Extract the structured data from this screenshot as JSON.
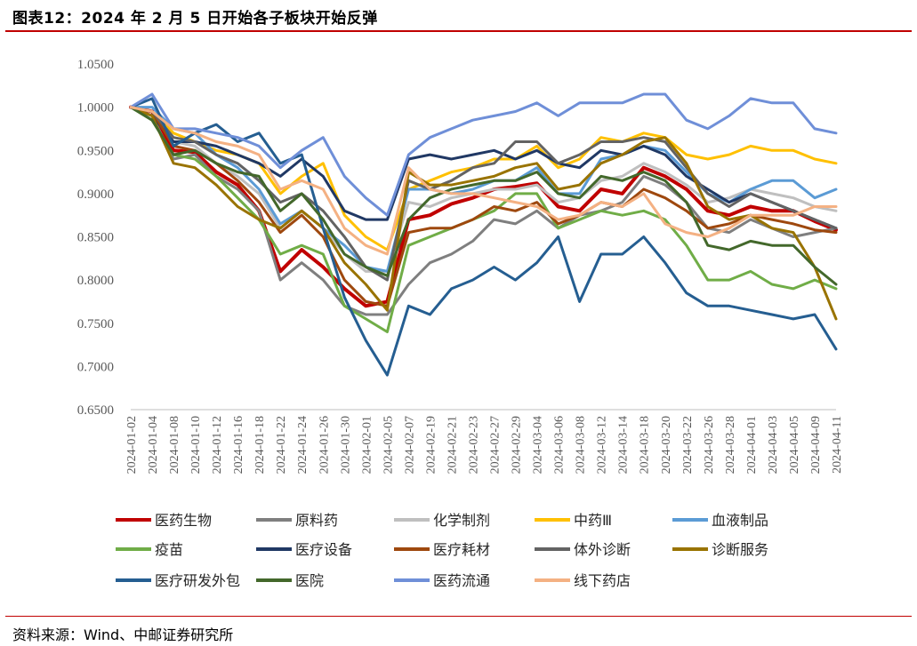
{
  "header": {
    "title": "图表12：2024 年 2 月 5 日开始各子板块开始反弹"
  },
  "footer": {
    "source": "资料来源：Wind、中邮证券研究所"
  },
  "colors": {
    "accent_rule": "#c00000"
  },
  "chart_data": {
    "type": "line",
    "ylim": [
      0.65,
      1.05
    ],
    "yticks": [
      "1.0500",
      "1.0000",
      "0.9500",
      "0.9000",
      "0.8500",
      "0.8000",
      "0.7500",
      "0.7000",
      "0.6500"
    ],
    "ytick_values": [
      1.05,
      1.0,
      0.95,
      0.9,
      0.85,
      0.8,
      0.75,
      0.7,
      0.65
    ],
    "x": [
      "2024-01-02",
      "2024-01-04",
      "2024-01-08",
      "2024-01-10",
      "2024-01-12",
      "2024-01-16",
      "2024-01-18",
      "2024-01-22",
      "2024-01-24",
      "2024-01-26",
      "2024-01-30",
      "2024-02-01",
      "2024-02-05",
      "2024-02-07",
      "2024-02-19",
      "2024-02-21",
      "2024-02-23",
      "2024-02-27",
      "2024-02-29",
      "2024-03-04",
      "2024-03-06",
      "2024-03-08",
      "2024-03-12",
      "2024-03-14",
      "2024-03-18",
      "2024-03-20",
      "2024-03-22",
      "2024-03-26",
      "2024-03-28",
      "2024-04-01",
      "2024-04-03",
      "2024-04-05",
      "2024-04-09",
      "2024-04-11"
    ],
    "legend_position": "bottom",
    "grid": false,
    "series": [
      {
        "name": "医药生物",
        "color": "#c00000",
        "width": 4,
        "values": [
          1.0,
          0.995,
          0.95,
          0.948,
          0.925,
          0.91,
          0.88,
          0.81,
          0.835,
          0.815,
          0.79,
          0.77,
          0.775,
          0.87,
          0.875,
          0.888,
          0.895,
          0.905,
          0.908,
          0.912,
          0.885,
          0.88,
          0.905,
          0.9,
          0.93,
          0.92,
          0.905,
          0.88,
          0.875,
          0.885,
          0.88,
          0.88,
          0.868,
          0.858
        ]
      },
      {
        "name": "原料药",
        "color": "#7f7f7f",
        "width": 3,
        "values": [
          1.0,
          0.99,
          0.94,
          0.945,
          0.92,
          0.905,
          0.88,
          0.8,
          0.82,
          0.8,
          0.77,
          0.76,
          0.76,
          0.795,
          0.82,
          0.83,
          0.845,
          0.87,
          0.865,
          0.88,
          0.86,
          0.875,
          0.88,
          0.89,
          0.92,
          0.91,
          0.89,
          0.86,
          0.855,
          0.87,
          0.86,
          0.85,
          0.855,
          0.86
        ]
      },
      {
        "name": "化学制剂",
        "color": "#bfbfbf",
        "width": 3,
        "values": [
          1.0,
          0.99,
          0.96,
          0.955,
          0.935,
          0.92,
          0.9,
          0.86,
          0.88,
          0.86,
          0.83,
          0.81,
          0.81,
          0.89,
          0.885,
          0.895,
          0.9,
          0.905,
          0.905,
          0.91,
          0.89,
          0.895,
          0.915,
          0.92,
          0.935,
          0.925,
          0.91,
          0.89,
          0.895,
          0.905,
          0.9,
          0.895,
          0.885,
          0.88
        ]
      },
      {
        "name": "中药Ⅲ",
        "color": "#ffc000",
        "width": 3,
        "values": [
          1.0,
          0.995,
          0.97,
          0.96,
          0.95,
          0.945,
          0.935,
          0.9,
          0.92,
          0.935,
          0.875,
          0.85,
          0.835,
          0.905,
          0.915,
          0.925,
          0.93,
          0.94,
          0.94,
          0.955,
          0.93,
          0.94,
          0.965,
          0.96,
          0.97,
          0.965,
          0.945,
          0.94,
          0.945,
          0.955,
          0.95,
          0.95,
          0.94,
          0.935
        ]
      },
      {
        "name": "血液制品",
        "color": "#5b9bd5",
        "width": 3,
        "values": [
          1.0,
          1.0,
          0.975,
          0.97,
          0.945,
          0.93,
          0.905,
          0.865,
          0.88,
          0.86,
          0.84,
          0.815,
          0.81,
          0.905,
          0.905,
          0.9,
          0.905,
          0.915,
          0.915,
          0.93,
          0.9,
          0.9,
          0.94,
          0.945,
          0.955,
          0.95,
          0.925,
          0.9,
          0.89,
          0.905,
          0.915,
          0.915,
          0.895,
          0.905
        ]
      },
      {
        "name": "疫苗",
        "color": "#70ad47",
        "width": 3,
        "values": [
          1.0,
          0.985,
          0.945,
          0.94,
          0.92,
          0.895,
          0.87,
          0.83,
          0.84,
          0.83,
          0.77,
          0.755,
          0.74,
          0.84,
          0.85,
          0.86,
          0.87,
          0.88,
          0.9,
          0.9,
          0.86,
          0.87,
          0.88,
          0.875,
          0.88,
          0.87,
          0.84,
          0.8,
          0.8,
          0.81,
          0.795,
          0.79,
          0.8,
          0.79
        ]
      },
      {
        "name": "医疗设备",
        "color": "#203864",
        "width": 3,
        "values": [
          1.0,
          0.99,
          0.96,
          0.96,
          0.955,
          0.945,
          0.935,
          0.92,
          0.94,
          0.92,
          0.88,
          0.87,
          0.87,
          0.94,
          0.945,
          0.94,
          0.945,
          0.95,
          0.94,
          0.95,
          0.935,
          0.93,
          0.95,
          0.945,
          0.955,
          0.945,
          0.92,
          0.905,
          0.89,
          0.9,
          0.89,
          0.88,
          0.87,
          0.86
        ]
      },
      {
        "name": "医疗耗材",
        "color": "#9e480e",
        "width": 3,
        "values": [
          1.0,
          0.995,
          0.955,
          0.95,
          0.935,
          0.915,
          0.89,
          0.855,
          0.875,
          0.85,
          0.8,
          0.775,
          0.77,
          0.855,
          0.86,
          0.86,
          0.87,
          0.885,
          0.88,
          0.89,
          0.865,
          0.875,
          0.89,
          0.885,
          0.905,
          0.895,
          0.88,
          0.86,
          0.865,
          0.875,
          0.87,
          0.865,
          0.858,
          0.855
        ]
      },
      {
        "name": "体外诊断",
        "color": "#636363",
        "width": 3,
        "values": [
          1.0,
          0.995,
          0.965,
          0.96,
          0.945,
          0.935,
          0.915,
          0.89,
          0.9,
          0.88,
          0.85,
          0.815,
          0.8,
          0.915,
          0.905,
          0.915,
          0.93,
          0.935,
          0.96,
          0.96,
          0.935,
          0.945,
          0.96,
          0.96,
          0.965,
          0.96,
          0.93,
          0.9,
          0.885,
          0.9,
          0.89,
          0.88,
          0.87,
          0.86
        ]
      },
      {
        "name": "诊断服务",
        "color": "#997300",
        "width": 3,
        "values": [
          1.0,
          0.99,
          0.935,
          0.93,
          0.91,
          0.885,
          0.87,
          0.86,
          0.88,
          0.86,
          0.82,
          0.795,
          0.765,
          0.925,
          0.91,
          0.91,
          0.915,
          0.92,
          0.93,
          0.935,
          0.905,
          0.91,
          0.935,
          0.945,
          0.96,
          0.965,
          0.935,
          0.885,
          0.87,
          0.875,
          0.86,
          0.855,
          0.815,
          0.755
        ]
      },
      {
        "name": "医疗研发外包",
        "color": "#255e91",
        "width": 3,
        "values": [
          1.0,
          1.01,
          0.955,
          0.97,
          0.98,
          0.96,
          0.97,
          0.935,
          0.945,
          0.86,
          0.78,
          0.73,
          0.69,
          0.77,
          0.76,
          0.79,
          0.8,
          0.815,
          0.8,
          0.82,
          0.85,
          0.775,
          0.83,
          0.83,
          0.85,
          0.82,
          0.785,
          0.77,
          0.77,
          0.765,
          0.76,
          0.755,
          0.76,
          0.72
        ]
      },
      {
        "name": "医院",
        "color": "#43682b",
        "width": 3,
        "values": [
          1.0,
          0.985,
          0.945,
          0.95,
          0.935,
          0.925,
          0.92,
          0.88,
          0.9,
          0.87,
          0.83,
          0.815,
          0.805,
          0.87,
          0.895,
          0.905,
          0.91,
          0.915,
          0.915,
          0.925,
          0.9,
          0.895,
          0.92,
          0.915,
          0.925,
          0.915,
          0.89,
          0.84,
          0.835,
          0.845,
          0.84,
          0.84,
          0.815,
          0.795
        ]
      },
      {
        "name": "医药流通",
        "color": "#6f8fd8",
        "width": 3,
        "values": [
          1.0,
          1.015,
          0.975,
          0.975,
          0.97,
          0.965,
          0.955,
          0.93,
          0.95,
          0.965,
          0.92,
          0.895,
          0.875,
          0.945,
          0.965,
          0.975,
          0.985,
          0.99,
          0.995,
          1.005,
          0.99,
          1.005,
          1.005,
          1.005,
          1.015,
          1.015,
          0.985,
          0.975,
          0.99,
          1.01,
          1.005,
          1.005,
          0.975,
          0.97
        ]
      },
      {
        "name": "线下药店",
        "color": "#f4b183",
        "width": 3,
        "values": [
          1.0,
          0.995,
          0.975,
          0.97,
          0.96,
          0.955,
          0.945,
          0.905,
          0.915,
          0.905,
          0.86,
          0.84,
          0.83,
          0.93,
          0.905,
          0.9,
          0.9,
          0.895,
          0.89,
          0.885,
          0.87,
          0.875,
          0.89,
          0.885,
          0.9,
          0.865,
          0.855,
          0.85,
          0.86,
          0.875,
          0.875,
          0.875,
          0.885,
          0.885
        ]
      }
    ]
  }
}
